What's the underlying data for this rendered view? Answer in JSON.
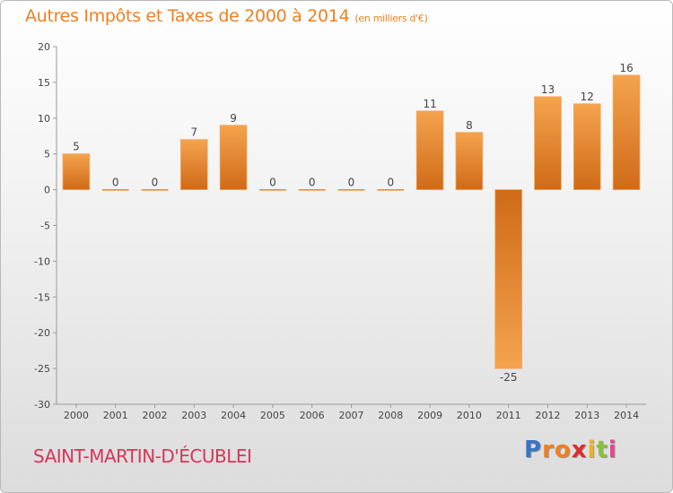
{
  "chart_data": {
    "type": "bar",
    "title": "Autres Impôts et Taxes de 2000 à 2014",
    "subtitle": "(en milliers d'€)",
    "categories": [
      "2000",
      "2001",
      "2002",
      "2003",
      "2004",
      "2005",
      "2006",
      "2007",
      "2008",
      "2009",
      "2010",
      "2011",
      "2012",
      "2013",
      "2014"
    ],
    "values": [
      5,
      0,
      0,
      7,
      9,
      0,
      0,
      0,
      0,
      11,
      8,
      -25,
      13,
      12,
      16
    ],
    "ylim": [
      -30,
      20
    ],
    "yticks": [
      "20",
      "15",
      "10",
      "5",
      "0",
      "-5",
      "-10",
      "-15",
      "-20",
      "-25",
      "-30"
    ],
    "grid": false,
    "bar_color": "#f0902e"
  },
  "footer": {
    "town": "SAINT-MARTIN-D'ÉCUBLEI",
    "logo_letters": [
      "P",
      "r",
      "o",
      "x",
      "i",
      "t",
      "i"
    ],
    "logo_colors": [
      "#3a74c4",
      "#f07f1f",
      "#f07f1f",
      "#d83030",
      "#f0b020",
      "#8ac03a",
      "#e04a90"
    ]
  }
}
